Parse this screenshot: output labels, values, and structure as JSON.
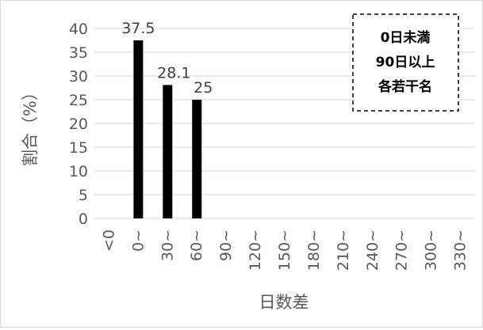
{
  "chart_data": {
    "type": "bar",
    "categories": [
      "<0",
      "0~",
      "30~",
      "60~",
      "90~",
      "120~",
      "150~",
      "180~",
      "210~",
      "240~",
      "270~",
      "300~",
      "330~"
    ],
    "values": [
      0,
      37.5,
      28.1,
      25,
      0,
      0,
      0,
      0,
      0,
      0,
      0,
      0,
      0
    ],
    "data_labels": [
      "",
      "37.5",
      "28.1",
      "25",
      "",
      "",
      "",
      "",
      "",
      "",
      "",
      "",
      ""
    ],
    "title": "",
    "xlabel": "日数差",
    "ylabel": "割合（%）",
    "ylim": [
      0,
      40
    ],
    "yticks": [
      0,
      5,
      10,
      15,
      20,
      25,
      30,
      35,
      40
    ],
    "grid": true,
    "legend": "none",
    "colors": {
      "bar": "#000000",
      "grid": "#d9d9d9",
      "text": "#595959"
    },
    "annotation": {
      "position": "top-right",
      "lines": [
        "0日未満",
        "90日以上",
        "各若干名"
      ]
    }
  }
}
